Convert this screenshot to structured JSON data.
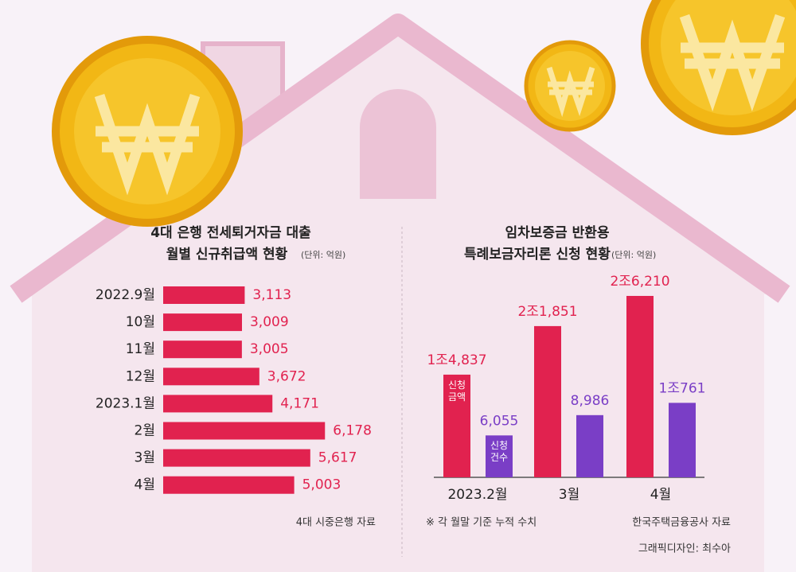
{
  "chart_data": [
    {
      "type": "hbar",
      "title": [
        "4대 은행 전세퇴거자금 대출",
        "월별 신규취급액 현황"
      ],
      "unit": "(단위: 억원)",
      "categories": [
        "2022.9월",
        "10월",
        "11월",
        "12월",
        "2023.1월",
        "2월",
        "3월",
        "4월"
      ],
      "values": [
        3113,
        3009,
        3005,
        3672,
        4171,
        6178,
        5617,
        5003
      ],
      "value_labels": [
        "3,113",
        "3,009",
        "3,005",
        "3,672",
        "4,171",
        "6,178",
        "5,617",
        "5,003"
      ],
      "color": "#e1224f",
      "source": "4대 시중은행 자료"
    },
    {
      "type": "grouped-bar",
      "title": [
        "임차보증금 반환용",
        "특례보금자리론 신청 현황"
      ],
      "unit": "(단위: 억원)",
      "categories": [
        "2023.2월",
        "3월",
        "4월"
      ],
      "series": [
        {
          "name": "신청 금액",
          "color": "#e1224f",
          "values": [
            14837,
            21851,
            26210
          ],
          "value_labels": [
            "1조4,837",
            "2조1,851",
            "2조6,210"
          ]
        },
        {
          "name": "신청 건수",
          "color": "#7a3ec6",
          "values": [
            6055,
            8986,
            10761
          ],
          "value_labels": [
            "6,055",
            "8,986",
            "1조761"
          ]
        }
      ],
      "note": "※ 각 월말 기준 누적 수치",
      "source": "한국주택금융공사 자료",
      "credit": "그래픽디자인: 최수아"
    }
  ]
}
